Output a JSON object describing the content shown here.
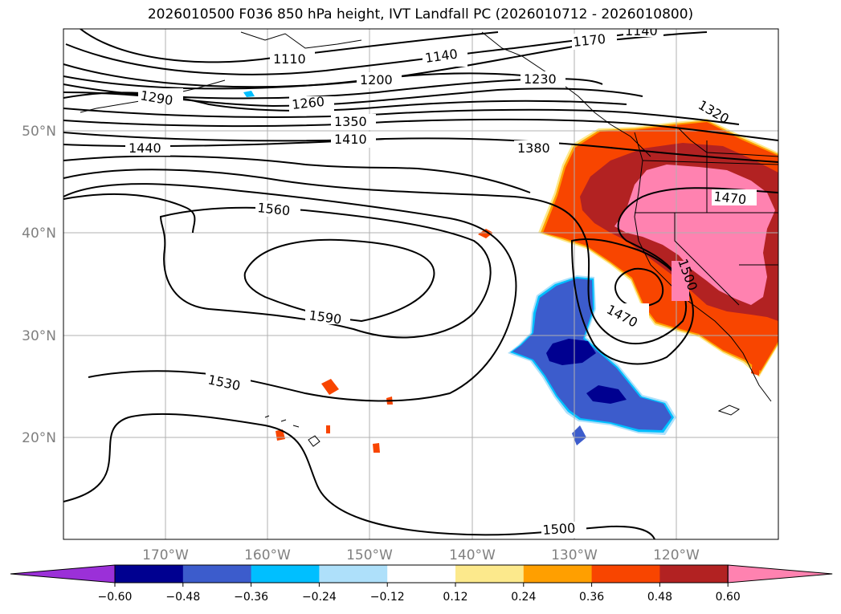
{
  "title": "2026010500 F036 850 hPa height, IVT Landfall PC (2026010712 - 2026010800)",
  "lat_labels": [
    "50°N",
    "40°N",
    "30°N",
    "20°N"
  ],
  "lon_labels": [
    "170°W",
    "160°W",
    "150°W",
    "140°W",
    "130°W",
    "120°W"
  ],
  "contour_labels": {
    "c1110": "1110",
    "c1140a": "1140",
    "c1140b": "1140",
    "c1170": "1170",
    "c1200": "1200",
    "c1230": "1230",
    "c1260": "1260",
    "c1290": "1290",
    "c1320": "1320",
    "c1350": "1350",
    "c1380": "1380",
    "c1410": "1410",
    "c1440": "1440",
    "c1470a": "1470",
    "c1470b": "1470",
    "c1500a": "1500",
    "c1500b": "1500",
    "c1530": "1530",
    "c1560": "1560",
    "c1590": "1590"
  },
  "colorbar": {
    "ticks": [
      "−0.60",
      "−0.48",
      "−0.36",
      "−0.24",
      "−0.12",
      "0.12",
      "0.24",
      "0.36",
      "0.48",
      "0.60"
    ],
    "colors": [
      "#9b30d8",
      "#000090",
      "#3c5ccc",
      "#00bfff",
      "#aee0fa",
      "#ffffff",
      "#fce98c",
      "#ff9f00",
      "#f84500",
      "#b22222",
      "#ff82b0"
    ]
  }
}
